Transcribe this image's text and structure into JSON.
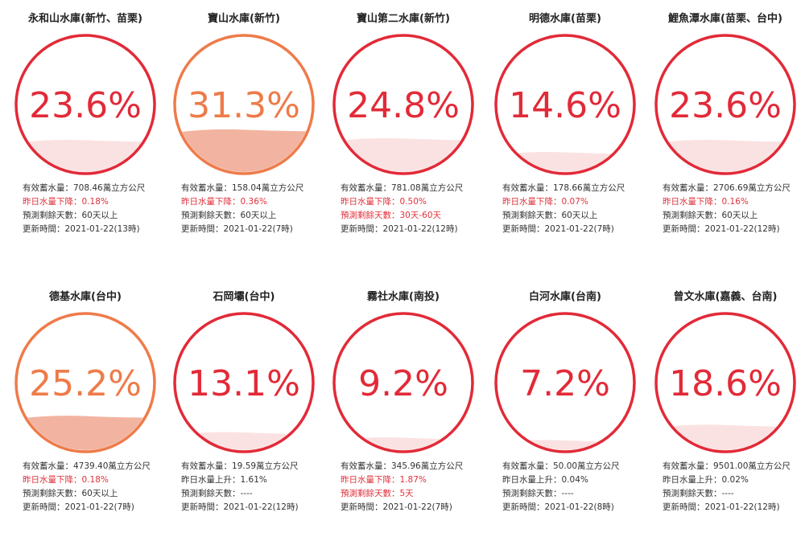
{
  "theme": {
    "red": "#e22a38",
    "orange": "#ee7b4a",
    "orange_fill": "#f2b4a0",
    "red_fill": "#fbe2e2"
  },
  "labels": {
    "capacity": "有效蓄水量：",
    "change_down": "昨日水量下降：",
    "change_up": "昨日水量上升：",
    "days": "預測剩餘天數：",
    "updated": "更新時間："
  },
  "reservoirs": [
    {
      "name": "永和山水庫(新竹、苗栗)",
      "percent_text": "23.6%",
      "level": 0.236,
      "status": "red",
      "capacity": "708.46萬立方公尺",
      "change": "0.18%",
      "change_dir": "down",
      "days": "60天以上",
      "days_alert": false,
      "updated": "2021-01-22(13時)"
    },
    {
      "name": "寶山水庫(新竹)",
      "percent_text": "31.3%",
      "level": 0.313,
      "status": "orange",
      "capacity": "158.04萬立方公尺",
      "change": "0.36%",
      "change_dir": "down",
      "days": "60天以上",
      "days_alert": false,
      "updated": "2021-01-22(7時)"
    },
    {
      "name": "寶山第二水庫(新竹)",
      "percent_text": "24.8%",
      "level": 0.248,
      "status": "red",
      "capacity": "781.08萬立方公尺",
      "change": "0.50%",
      "change_dir": "down",
      "days": "30天-60天",
      "days_alert": true,
      "updated": "2021-01-22(12時)"
    },
    {
      "name": "明德水庫(苗栗)",
      "percent_text": "14.6%",
      "level": 0.146,
      "status": "red",
      "capacity": "178.66萬立方公尺",
      "change": "0.07%",
      "change_dir": "down",
      "days": "60天以上",
      "days_alert": false,
      "updated": "2021-01-22(7時)"
    },
    {
      "name": "鯉魚潭水庫(苗栗、台中)",
      "percent_text": "23.6%",
      "level": 0.236,
      "status": "red",
      "capacity": "2706.69萬立方公尺",
      "change": "0.16%",
      "change_dir": "down",
      "days": "60天以上",
      "days_alert": false,
      "updated": "2021-01-22(12時)"
    },
    {
      "name": "德基水庫(台中)",
      "percent_text": "25.2%",
      "level": 0.252,
      "status": "orange",
      "capacity": "4739.40萬立方公尺",
      "change": "0.18%",
      "change_dir": "down",
      "days": "60天以上",
      "days_alert": false,
      "updated": "2021-01-22(7時)"
    },
    {
      "name": "石岡壩(台中)",
      "percent_text": "13.1%",
      "level": 0.131,
      "status": "red",
      "capacity": "19.59萬立方公尺",
      "change": "1.61%",
      "change_dir": "up",
      "days": "----",
      "days_alert": false,
      "updated": "2021-01-22(12時)"
    },
    {
      "name": "霧社水庫(南投)",
      "percent_text": "9.2%",
      "level": 0.092,
      "status": "red",
      "capacity": "345.96萬立方公尺",
      "change": "1.87%",
      "change_dir": "down",
      "days": "5天",
      "days_alert": true,
      "updated": "2021-01-22(7時)"
    },
    {
      "name": "白河水庫(台南)",
      "percent_text": "7.2%",
      "level": 0.072,
      "status": "red",
      "capacity": "50.00萬立方公尺",
      "change": "0.04%",
      "change_dir": "up",
      "days": "----",
      "days_alert": false,
      "updated": "2021-01-22(8時)"
    },
    {
      "name": "曾文水庫(嘉義、台南)",
      "percent_text": "18.6%",
      "level": 0.186,
      "status": "red",
      "capacity": "9501.00萬立方公尺",
      "change": "0.02%",
      "change_dir": "up",
      "days": "----",
      "days_alert": false,
      "updated": "2021-01-22(12時)"
    }
  ]
}
